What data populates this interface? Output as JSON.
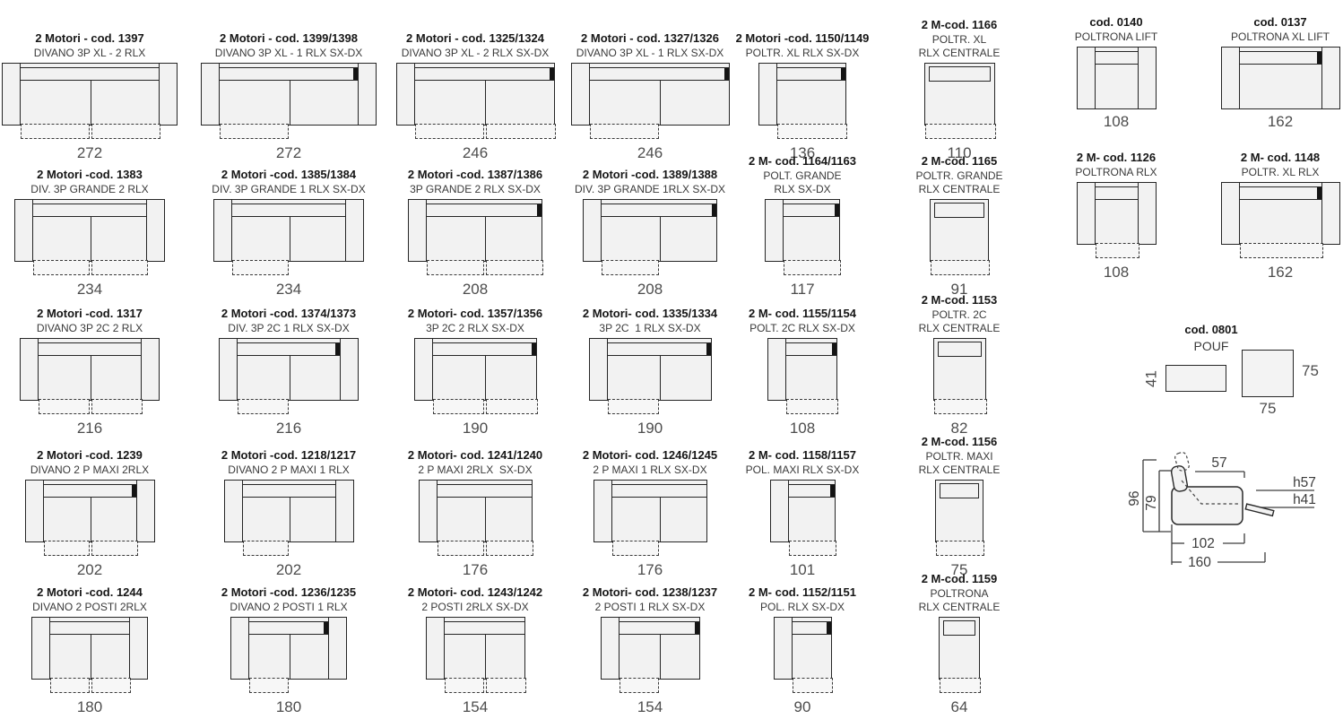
{
  "colors": {
    "line": "#262626",
    "fill": "#f2f2f2",
    "dashed": "#3a3a3a",
    "title_text": "#161616",
    "subtitle_text": "#3a3a3a",
    "dim_text": "#4d4d4d",
    "mark": "#141414"
  },
  "grid": {
    "items": [
      {
        "code": "2 Motori - cod. 1397",
        "name": "DIVANO 3P XL - 2 RLX",
        "width_cm": 272,
        "arms": "both",
        "seats": 2,
        "rlx": "2"
      },
      {
        "code": "2 Motori - cod. 1399/1398",
        "name": "DIVANO 3P XL - 1 RLX SX-DX",
        "width_cm": 272,
        "arms": "both",
        "seats": 2,
        "rlx": "1",
        "mark": true
      },
      {
        "code": "2 Motori - cod. 1325/1324",
        "name": "DIVANO 3P XL - 2 RLX SX-DX",
        "width_cm": 246,
        "arms": "left",
        "seats": 2,
        "rlx": "2",
        "mark": true
      },
      {
        "code": "2 Motori - cod. 1327/1326",
        "name": "DIVANO 3P XL - 1 RLX SX-DX",
        "width_cm": 246,
        "arms": "left",
        "seats": 2,
        "rlx": "1",
        "mark": true
      },
      {
        "code": "2 Motori -cod. 1150/1149",
        "name": "POLTR. XL RLX SX-DX",
        "width_cm": 136,
        "arms": "left",
        "seats": 1,
        "rlx": "sx",
        "mark": true
      },
      {
        "code": "2 M-cod. 1166",
        "name": "POLTR. XL",
        "name2": "RLX CENTRALE",
        "width_cm": 110,
        "arms": "none",
        "seats": 1,
        "rlx": "centrale"
      },
      {
        "code": "2 Motori -cod. 1383",
        "name": "DIV. 3P GRANDE 2 RLX",
        "width_cm": 234,
        "arms": "both",
        "seats": 2,
        "rlx": "2"
      },
      {
        "code": "2 Motori -cod. 1385/1384",
        "name": "DIV. 3P GRANDE 1 RLX SX-DX",
        "width_cm": 234,
        "arms": "both",
        "seats": 2,
        "rlx": "1"
      },
      {
        "code": "2 Motori -cod. 1387/1386",
        "name": "3P GRANDE 2 RLX SX-DX",
        "width_cm": 208,
        "arms": "left",
        "seats": 2,
        "rlx": "2",
        "mark": true
      },
      {
        "code": "2 Motori -cod. 1389/1388",
        "name": "DIV. 3P GRANDE 1RLX SX-DX",
        "width_cm": 208,
        "arms": "left",
        "seats": 2,
        "rlx": "1",
        "mark": true
      },
      {
        "code": "2 M- cod. 1164/1163",
        "name": "POLT. GRANDE",
        "name2": "RLX SX-DX",
        "width_cm": 117,
        "arms": "left",
        "seats": 1,
        "rlx": "sx",
        "mark": true
      },
      {
        "code": "2 M-cod. 1165",
        "name": "POLTR. GRANDE",
        "name2": "RLX CENTRALE",
        "width_cm": 91,
        "arms": "none",
        "seats": 1,
        "rlx": "centrale"
      },
      {
        "code": "2 Motori -cod. 1317",
        "name": "DIVANO 3P 2C 2 RLX",
        "width_cm": 216,
        "arms": "both",
        "seats": 2,
        "rlx": "2"
      },
      {
        "code": "2 Motori -cod. 1374/1373",
        "name": "DIV. 3P 2C 1 RLX SX-DX",
        "width_cm": 216,
        "arms": "both",
        "seats": 2,
        "rlx": "1",
        "mark": true
      },
      {
        "code": "2 Motori- cod. 1357/1356",
        "name": "3P 2C 2 RLX SX-DX",
        "width_cm": 190,
        "arms": "left",
        "seats": 2,
        "rlx": "2",
        "mark": true
      },
      {
        "code": "2 Motori- cod. 1335/1334",
        "name": "3P 2C  1 RLX SX-DX",
        "width_cm": 190,
        "arms": "left",
        "seats": 2,
        "rlx": "1",
        "mark": true
      },
      {
        "code": "2 M- cod. 1155/1154",
        "name": "POLT. 2C RLX SX-DX",
        "width_cm": 108,
        "arms": "left",
        "seats": 1,
        "rlx": "sx",
        "mark": true
      },
      {
        "code": "2 M-cod. 1153",
        "name": "POLTR. 2C",
        "name2": "RLX CENTRALE",
        "width_cm": 82,
        "arms": "none",
        "seats": 1,
        "rlx": "centrale"
      },
      {
        "code": "2 Motori -cod. 1239",
        "name": "DIVANO 2 P MAXI 2RLX",
        "width_cm": 202,
        "arms": "both",
        "seats": 2,
        "rlx": "2",
        "mark": true
      },
      {
        "code": "2 Motori -cod. 1218/1217",
        "name": "DIVANO 2 P MAXI 1 RLX",
        "width_cm": 202,
        "arms": "both",
        "seats": 2,
        "rlx": "1"
      },
      {
        "code": "2 Motori- cod. 1241/1240",
        "name": "2 P MAXI 2RLX  SX-DX",
        "width_cm": 176,
        "arms": "left",
        "seats": 2,
        "rlx": "2"
      },
      {
        "code": "2 Motori- cod. 1246/1245",
        "name": "2 P MAXI 1 RLX SX-DX",
        "width_cm": 176,
        "arms": "left",
        "seats": 2,
        "rlx": "1"
      },
      {
        "code": "2 M- cod. 1158/1157",
        "name": "POL. MAXI RLX SX-DX",
        "width_cm": 101,
        "arms": "left",
        "seats": 1,
        "rlx": "sx",
        "mark": true
      },
      {
        "code": "2 M-cod. 1156",
        "name": "POLTR. MAXI",
        "name2": "RLX CENTRALE",
        "width_cm": 75,
        "arms": "none",
        "seats": 1,
        "rlx": "centrale"
      },
      {
        "code": "2 Motori -cod. 1244",
        "name": "DIVANO 2 POSTI 2RLX",
        "width_cm": 180,
        "arms": "both",
        "seats": 2,
        "rlx": "2"
      },
      {
        "code": "2 Motori -cod. 1236/1235",
        "name": "DIVANO 2 POSTI 1 RLX",
        "width_cm": 180,
        "arms": "both",
        "seats": 2,
        "rlx": "1",
        "mark": true
      },
      {
        "code": "2 Motori- cod. 1243/1242",
        "name": "2 POSTI 2RLX SX-DX",
        "width_cm": 154,
        "arms": "left",
        "seats": 2,
        "rlx": "2"
      },
      {
        "code": "2 Motori- cod. 1238/1237",
        "name": "2 POSTI 1 RLX SX-DX",
        "width_cm": 154,
        "arms": "left",
        "seats": 2,
        "rlx": "1",
        "mark": true
      },
      {
        "code": "2 M- cod. 1152/1151",
        "name": "POL. RLX SX-DX",
        "width_cm": 90,
        "arms": "left",
        "seats": 1,
        "rlx": "sx",
        "mark": true
      },
      {
        "code": "2 M-cod. 1159",
        "name": "POLTRONA",
        "name2": "RLX CENTRALE",
        "width_cm": 64,
        "arms": "none",
        "seats": 1,
        "rlx": "centrale"
      }
    ]
  },
  "right_items": [
    {
      "code": "cod. 0140",
      "name": "POLTRONA LIFT",
      "width_cm": 108,
      "arms": "both",
      "seats": 1,
      "rlx": "none"
    },
    {
      "code": "cod. 0137",
      "name": "POLTRONA XL LIFT",
      "width_cm": 162,
      "arms": "both",
      "seats": 1,
      "rlx": "none",
      "mark": true
    },
    {
      "code": "2 M- cod. 1126",
      "name": "POLTRONA RLX",
      "width_cm": 108,
      "arms": "both",
      "seats": 1,
      "rlx": "between"
    },
    {
      "code": "2 M- cod. 1148",
      "name": "POLTR. XL RLX",
      "width_cm": 162,
      "arms": "both",
      "seats": 1,
      "rlx": "between",
      "mark": true
    }
  ],
  "pouf": {
    "code": "cod. 0801",
    "label": "POUF",
    "small_height_label": "41",
    "large_side_label": "75",
    "large_bottom_label": "75"
  },
  "side_view": {
    "labels": {
      "back_height": "96",
      "seat_back_height": "79",
      "headrest_width": "57",
      "h_closed": "h57",
      "h_seat": "h41",
      "depth": "102",
      "depth_open": "160"
    }
  }
}
